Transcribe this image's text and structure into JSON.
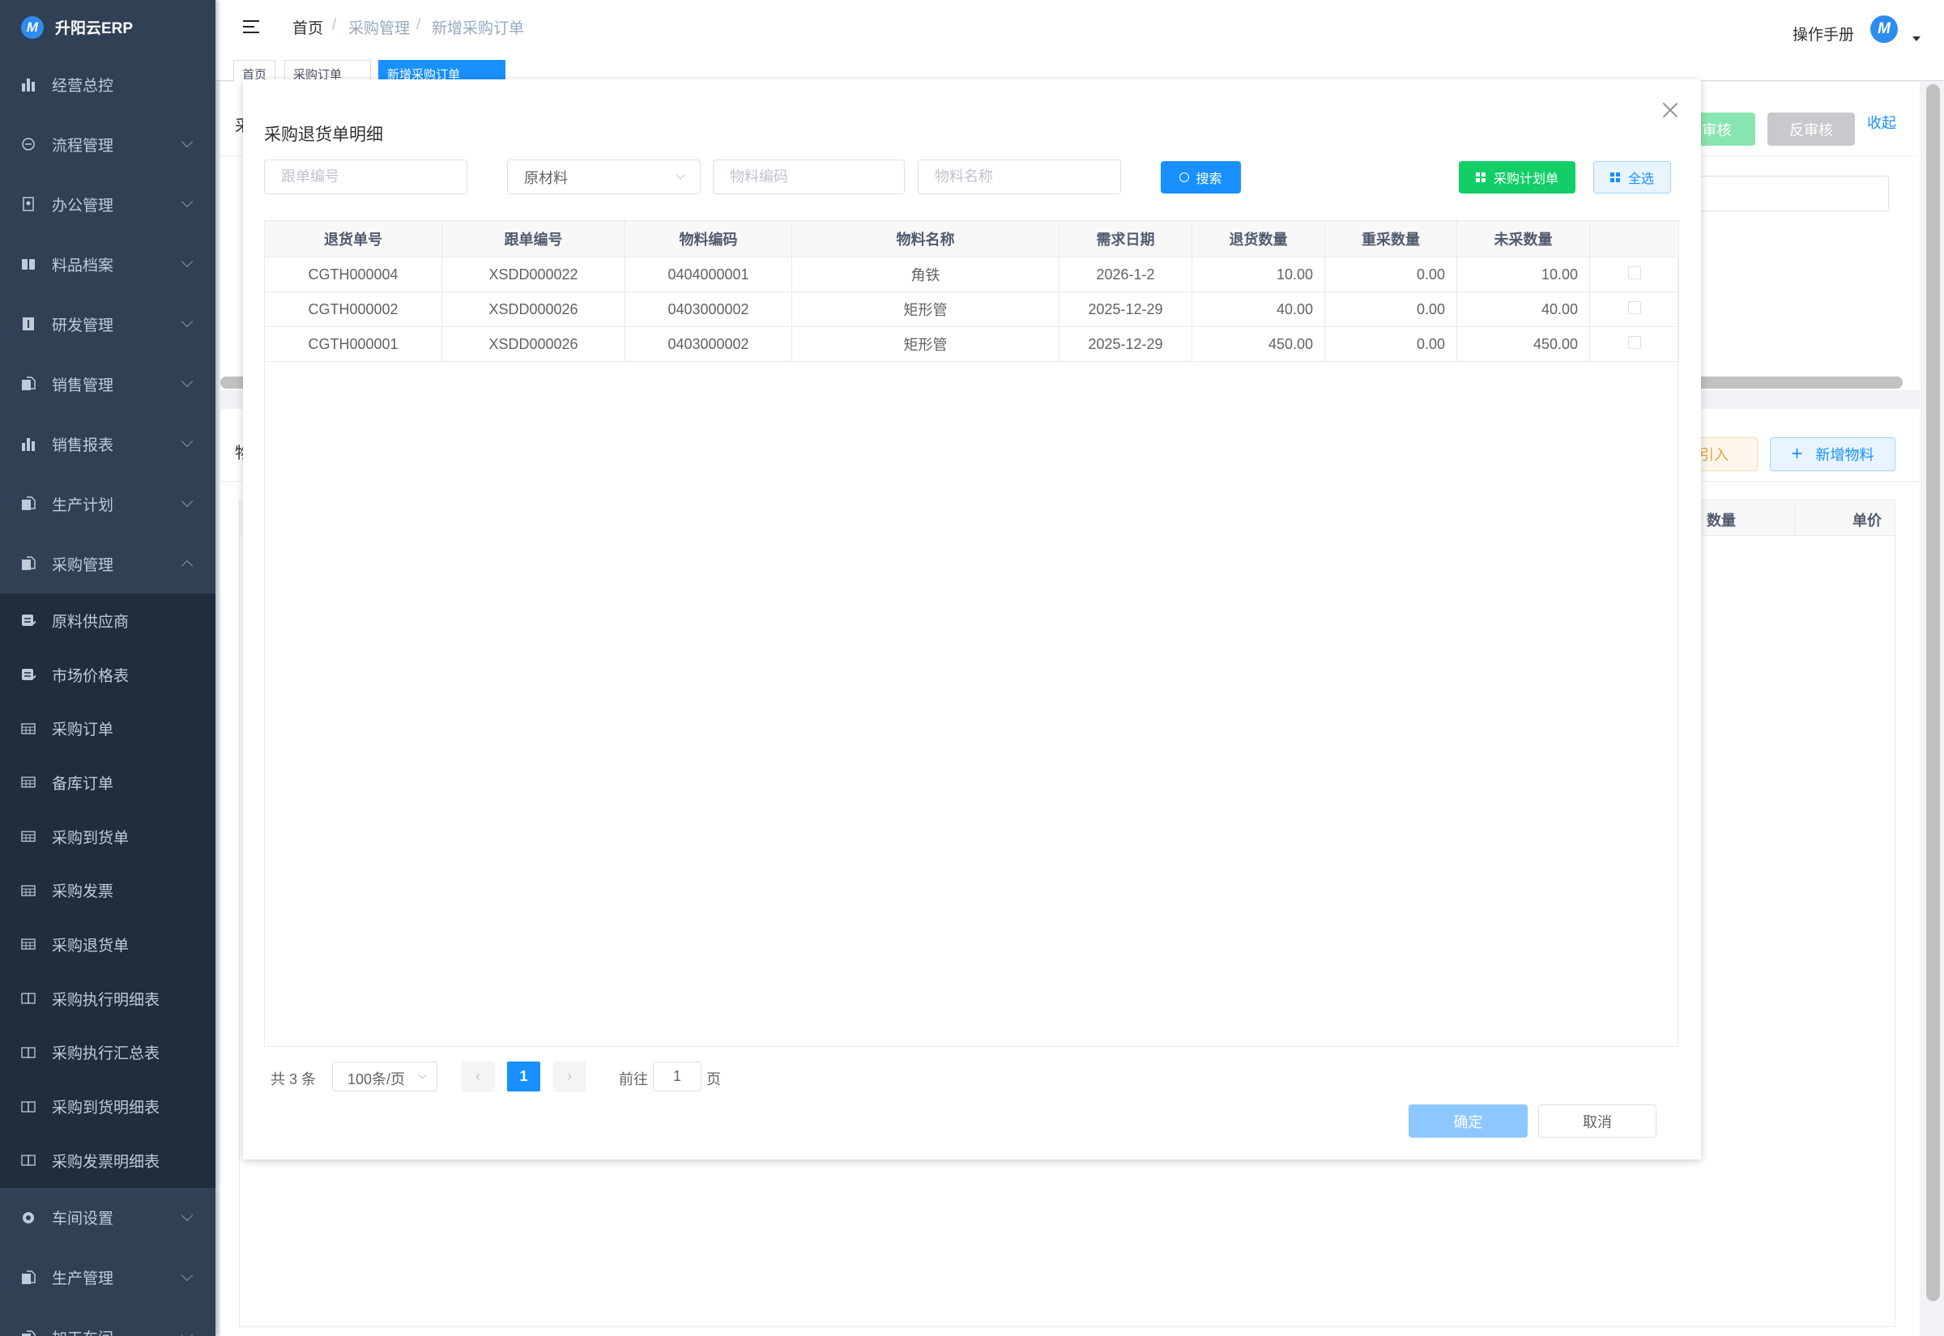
{
  "sidebar": {
    "logo_text": "升阳云ERP",
    "items": [
      {
        "label": "经营总控",
        "icon": "bar-chart-icon"
      },
      {
        "label": "流程管理",
        "icon": "flow-icon",
        "chevron": "down"
      },
      {
        "label": "办公管理",
        "icon": "office-icon",
        "chevron": "down"
      },
      {
        "label": "料品档案",
        "icon": "book-icon",
        "chevron": "down"
      },
      {
        "label": "研发管理",
        "icon": "info-icon",
        "chevron": "down"
      },
      {
        "label": "销售管理",
        "icon": "document-icon",
        "chevron": "down"
      },
      {
        "label": "销售报表",
        "icon": "bar-chart-icon",
        "chevron": "down"
      },
      {
        "label": "生产计划",
        "icon": "document-icon",
        "chevron": "down"
      },
      {
        "label": "采购管理",
        "icon": "document-icon",
        "chevron": "up",
        "children": [
          {
            "label": "原料供应商",
            "icon": "edit-document-icon"
          },
          {
            "label": "市场价格表",
            "icon": "edit-document-icon"
          },
          {
            "label": "采购订单",
            "icon": "table-icon"
          },
          {
            "label": "备库订单",
            "icon": "table-icon"
          },
          {
            "label": "采购到货单",
            "icon": "table-icon"
          },
          {
            "label": "采购发票",
            "icon": "table-icon"
          },
          {
            "label": "采购退货单",
            "icon": "table-icon"
          },
          {
            "label": "采购执行明细表",
            "icon": "open-book-icon"
          },
          {
            "label": "采购执行汇总表",
            "icon": "open-book-icon"
          },
          {
            "label": "采购到货明细表",
            "icon": "open-book-icon"
          },
          {
            "label": "采购发票明细表",
            "icon": "open-book-icon"
          }
        ]
      },
      {
        "label": "车间设置",
        "icon": "gear-icon",
        "chevron": "down"
      },
      {
        "label": "生产管理",
        "icon": "document-icon",
        "chevron": "down"
      },
      {
        "label": "加工车间",
        "icon": "document-icon",
        "chevron": "down"
      }
    ]
  },
  "header": {
    "breadcrumb": [
      "首页",
      "采购管理",
      "新增采购订单"
    ],
    "separator": "/",
    "manual_link": "操作手册"
  },
  "tabs": [
    "首页",
    "采购订单",
    "新增采购订单"
  ],
  "background": {
    "audit_button": "审核",
    "unaudit_button": "反审核",
    "collapse_link": "收起",
    "section1_label_fragment": "采",
    "section2_label_fragment": "物",
    "import_button": "引入",
    "add_material_button": "新增物料",
    "columns": [
      "数量",
      "单价"
    ]
  },
  "modal": {
    "title": "采购退货单明细",
    "filters": {
      "order_no_placeholder": "跟单编号",
      "category_value": "原材料",
      "material_code_placeholder": "物料编码",
      "material_name_placeholder": "物料名称"
    },
    "search_button": "搜索",
    "plan_button": "采购计划单",
    "select_all_button": "全选",
    "table": {
      "columns": [
        "退货单号",
        "跟单编号",
        "物料编码",
        "物料名称",
        "需求日期",
        "退货数量",
        "重采数量",
        "未采数量",
        ""
      ],
      "rows": [
        {
          "cells": [
            "CGTH000004",
            "XSDD000022",
            "0404000001",
            "角铁",
            "2026-1-2",
            "10.00",
            "0.00",
            "10.00"
          ],
          "checked": false
        },
        {
          "cells": [
            "CGTH000002",
            "XSDD000026",
            "0403000002",
            "矩形管",
            "2025-12-29",
            "40.00",
            "0.00",
            "40.00"
          ],
          "checked": false
        },
        {
          "cells": [
            "CGTH000001",
            "XSDD000026",
            "0403000002",
            "矩形管",
            "2025-12-29",
            "450.00",
            "0.00",
            "450.00"
          ],
          "checked": false
        }
      ]
    },
    "pagination": {
      "total_text": "共 3 条",
      "page_size": "100条/页",
      "current_page": "1",
      "goto_label": "前往",
      "goto_value": "1",
      "page_suffix": "页"
    },
    "confirm_button": "确定",
    "cancel_button": "取消"
  },
  "colors": {
    "primary": "#1890ff",
    "success": "#13ce66",
    "sidebar": "#304156",
    "submenu": "#1f2d3d"
  }
}
